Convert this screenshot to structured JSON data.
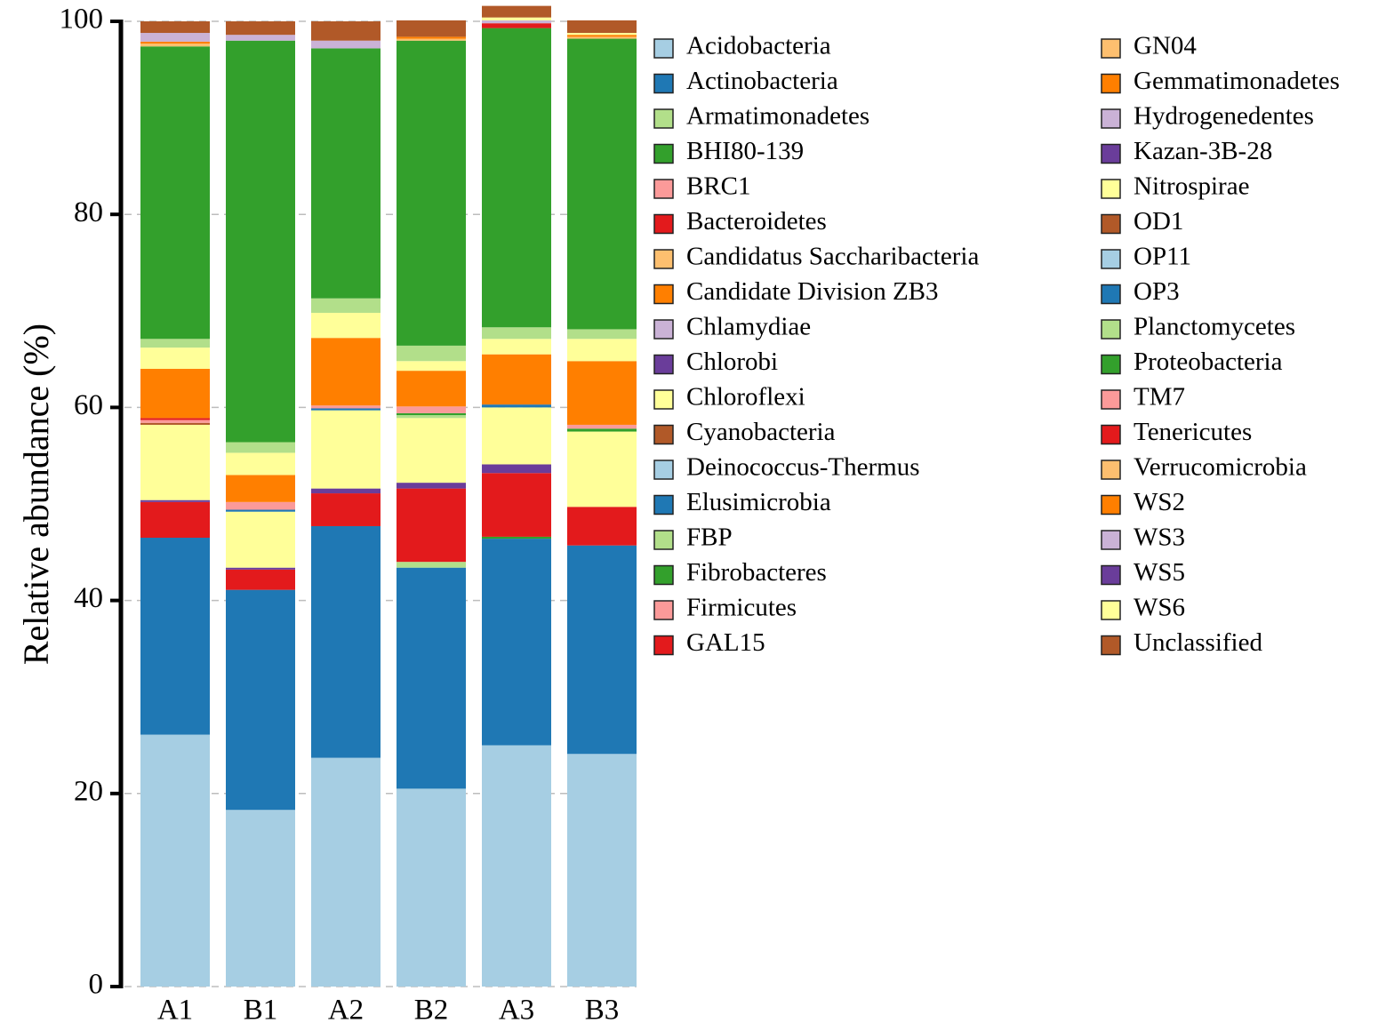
{
  "chart_data": {
    "type": "stacked-bar",
    "title": "",
    "xlabel": "",
    "ylabel": "Relative abundance (%)",
    "ylim": [
      0,
      100
    ],
    "yticks": [
      0,
      20,
      40,
      60,
      80,
      100
    ],
    "grid": true,
    "legend_position": "right",
    "categories": [
      "A1",
      "B1",
      "A2",
      "B2",
      "A3",
      "B3"
    ],
    "series": [
      {
        "name": "Acidobacteria",
        "color": "#a6cee3",
        "values": [
          26.1,
          18.3,
          23.7,
          20.5,
          25.0,
          24.1
        ]
      },
      {
        "name": "Actinobacteria",
        "color": "#1f78b4",
        "values": [
          20.4,
          22.8,
          24.0,
          22.9,
          21.4,
          21.6
        ]
      },
      {
        "name": "Armatimonadetes",
        "color": "#b2df8a",
        "values": [
          0.0,
          0.0,
          0.0,
          0.6,
          0.0,
          0.0
        ]
      },
      {
        "name": "BHI80-139",
        "color": "#33a02c",
        "values": [
          0.0,
          0.0,
          0.0,
          0.0,
          0.2,
          0.0
        ]
      },
      {
        "name": "BRC1",
        "color": "#fb9a99",
        "values": [
          0.0,
          0.0,
          0.0,
          0.0,
          0.0,
          0.0
        ]
      },
      {
        "name": "Bacteroidetes",
        "color": "#e31a1c",
        "values": [
          3.7,
          2.1,
          3.4,
          7.6,
          6.6,
          4.0
        ]
      },
      {
        "name": "Candidatus Saccharibacteria",
        "color": "#fdbf6f",
        "values": [
          0.0,
          0.0,
          0.0,
          0.0,
          0.0,
          0.0
        ]
      },
      {
        "name": "Candidate Division ZB3",
        "color": "#ff7f00",
        "values": [
          0.0,
          0.0,
          0.0,
          0.0,
          0.0,
          0.0
        ]
      },
      {
        "name": "Chlamydiae",
        "color": "#cab2d6",
        "values": [
          0.0,
          0.0,
          0.0,
          0.0,
          0.0,
          0.0
        ]
      },
      {
        "name": "Chlorobi",
        "color": "#6a3d9a",
        "values": [
          0.2,
          0.2,
          0.5,
          0.6,
          0.9,
          0.0
        ]
      },
      {
        "name": "Chloroflexi",
        "color": "#ffff99",
        "values": [
          7.8,
          5.8,
          8.1,
          6.7,
          5.9,
          7.8
        ]
      },
      {
        "name": "Cyanobacteria",
        "color": "#b15928",
        "values": [
          0.2,
          0.0,
          0.0,
          0.0,
          0.0,
          0.0
        ]
      },
      {
        "name": "Deinococcus-Thermus",
        "color": "#a6cee3",
        "values": [
          0.0,
          0.0,
          0.0,
          0.0,
          0.0,
          0.0
        ]
      },
      {
        "name": "Elusimicrobia",
        "color": "#1f78b4",
        "values": [
          0.0,
          0.2,
          0.2,
          0.0,
          0.3,
          0.0
        ]
      },
      {
        "name": "FBP",
        "color": "#b2df8a",
        "values": [
          0.0,
          0.0,
          0.0,
          0.3,
          0.0,
          0.0
        ]
      },
      {
        "name": "Fibrobacteres",
        "color": "#33a02c",
        "values": [
          0.0,
          0.0,
          0.0,
          0.2,
          0.0,
          0.3
        ]
      },
      {
        "name": "Firmicutes",
        "color": "#fb9a99",
        "values": [
          0.3,
          0.8,
          0.3,
          0.7,
          0.0,
          0.4
        ]
      },
      {
        "name": "GAL15",
        "color": "#e31a1c",
        "values": [
          0.2,
          0.0,
          0.0,
          0.0,
          0.0,
          0.0
        ]
      },
      {
        "name": "GN04",
        "color": "#fdbf6f",
        "values": [
          0.0,
          0.0,
          0.0,
          0.0,
          0.0,
          0.0
        ]
      },
      {
        "name": "Gemmatimonadetes",
        "color": "#ff7f00",
        "values": [
          5.1,
          2.8,
          7.0,
          3.7,
          5.2,
          6.6
        ]
      },
      {
        "name": "Hydrogenedentes",
        "color": "#cab2d6",
        "values": [
          0.0,
          0.0,
          0.0,
          0.0,
          0.0,
          0.0
        ]
      },
      {
        "name": "Kazan-3B-28",
        "color": "#6a3d9a",
        "values": [
          0.0,
          0.0,
          0.0,
          0.0,
          0.0,
          0.0
        ]
      },
      {
        "name": "Nitrospirae",
        "color": "#ffff99",
        "values": [
          2.2,
          2.3,
          2.6,
          1.0,
          1.6,
          2.3
        ]
      },
      {
        "name": "OD1",
        "color": "#b15928",
        "values": [
          0.0,
          0.0,
          0.0,
          0.0,
          0.0,
          0.0
        ]
      },
      {
        "name": "OP11",
        "color": "#a6cee3",
        "values": [
          0.0,
          0.0,
          0.0,
          0.0,
          0.0,
          0.0
        ]
      },
      {
        "name": "OP3",
        "color": "#1f78b4",
        "values": [
          0.0,
          0.0,
          0.0,
          0.0,
          0.0,
          0.0
        ]
      },
      {
        "name": "Planctomycetes",
        "color": "#b2df8a",
        "values": [
          0.9,
          1.1,
          1.5,
          1.6,
          1.2,
          1.0
        ]
      },
      {
        "name": "Proteobacteria",
        "color": "#33a02c",
        "values": [
          30.3,
          41.6,
          25.9,
          31.6,
          31.0,
          30.1
        ]
      },
      {
        "name": "TM7",
        "color": "#fb9a99",
        "values": [
          0.0,
          0.0,
          0.0,
          0.0,
          0.0,
          0.0
        ]
      },
      {
        "name": "Tenericutes",
        "color": "#e31a1c",
        "values": [
          0.0,
          0.0,
          0.0,
          0.0,
          0.5,
          0.0
        ]
      },
      {
        "name": "Verrucomicrobia",
        "color": "#fdbf6f",
        "values": [
          0.3,
          0.0,
          0.0,
          0.2,
          0.0,
          0.2
        ]
      },
      {
        "name": "WS2",
        "color": "#ff7f00",
        "values": [
          0.2,
          0.0,
          0.0,
          0.2,
          0.0,
          0.2
        ]
      },
      {
        "name": "WS3",
        "color": "#cab2d6",
        "values": [
          0.9,
          0.6,
          0.8,
          0.0,
          0.3,
          0.0
        ]
      },
      {
        "name": "WS5",
        "color": "#6a3d9a",
        "values": [
          0.0,
          0.0,
          0.0,
          0.0,
          0.0,
          0.0
        ]
      },
      {
        "name": "WS6",
        "color": "#ffff99",
        "values": [
          0.0,
          0.0,
          0.0,
          0.0,
          0.3,
          0.2
        ]
      },
      {
        "name": "Unclassified",
        "color": "#b15928",
        "values": [
          1.2,
          1.4,
          2.0,
          1.7,
          1.2,
          1.3
        ]
      }
    ]
  }
}
